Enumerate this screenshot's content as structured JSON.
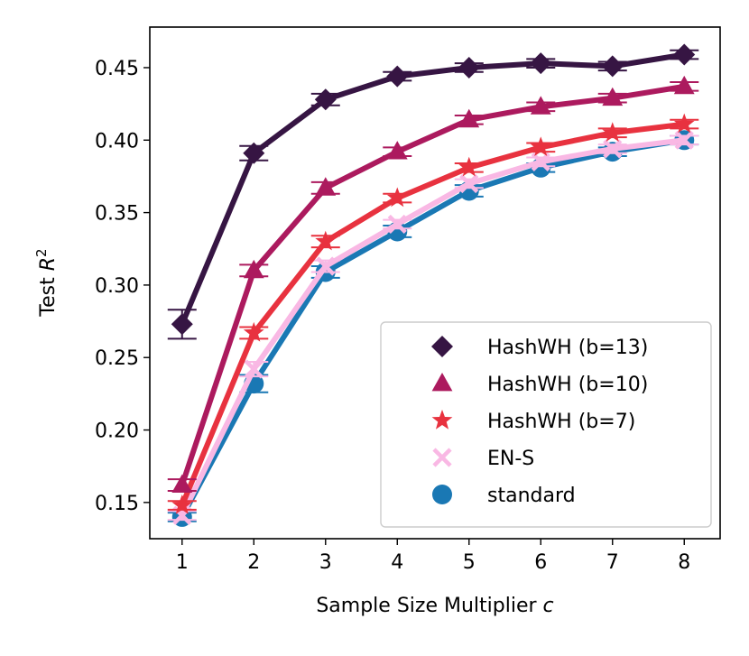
{
  "chart_data": {
    "type": "line",
    "x": [
      1,
      2,
      3,
      4,
      5,
      6,
      7,
      8
    ],
    "xlim": [
      0.55,
      8.5
    ],
    "ylim": [
      0.125,
      0.478
    ],
    "xticks": [
      1,
      2,
      3,
      4,
      5,
      6,
      7,
      8
    ],
    "yticks": [
      0.15,
      0.2,
      0.25,
      0.3,
      0.35,
      0.4,
      0.45
    ],
    "xlabel_main": "Sample Size Multiplier ",
    "xlabel_var": "c",
    "ylabel_main": "Test ",
    "ylabel_var": "R",
    "ylabel_sup": "2",
    "legend_position": "lower-right",
    "series": [
      {
        "name": "standard",
        "color": "#1a78b4",
        "marker": "circle",
        "values": [
          0.14,
          0.232,
          0.309,
          0.337,
          0.365,
          0.381,
          0.392,
          0.4
        ],
        "errors": [
          0.003,
          0.006,
          0.004,
          0.004,
          0.004,
          0.003,
          0.003,
          0.003
        ]
      },
      {
        "name": "EN-S",
        "color": "#f9b8e4",
        "marker": "x",
        "values": [
          0.141,
          0.242,
          0.313,
          0.342,
          0.37,
          0.385,
          0.394,
          0.4
        ],
        "errors": [
          0.003,
          0.005,
          0.004,
          0.003,
          0.003,
          0.003,
          0.003,
          0.003
        ]
      },
      {
        "name": "HashWH (b=7)",
        "color": "#e8323f",
        "marker": "star",
        "values": [
          0.148,
          0.267,
          0.33,
          0.36,
          0.381,
          0.395,
          0.405,
          0.411
        ],
        "errors": [
          0.003,
          0.004,
          0.004,
          0.003,
          0.003,
          0.003,
          0.003,
          0.003
        ]
      },
      {
        "name": "HashWH (b=10)",
        "color": "#ac1a5e",
        "marker": "triangle",
        "values": [
          0.162,
          0.31,
          0.367,
          0.392,
          0.414,
          0.423,
          0.429,
          0.437
        ],
        "errors": [
          0.004,
          0.004,
          0.004,
          0.003,
          0.003,
          0.003,
          0.003,
          0.003
        ]
      },
      {
        "name": "HashWH (b=13)",
        "color": "#361543",
        "marker": "diamond",
        "values": [
          0.273,
          0.391,
          0.428,
          0.444,
          0.45,
          0.453,
          0.451,
          0.459
        ],
        "errors": [
          0.01,
          0.005,
          0.004,
          0.003,
          0.003,
          0.003,
          0.003,
          0.003
        ]
      }
    ],
    "legend_order": [
      "HashWH (b=13)",
      "HashWH (b=10)",
      "HashWH (b=7)",
      "EN-S",
      "standard"
    ]
  }
}
